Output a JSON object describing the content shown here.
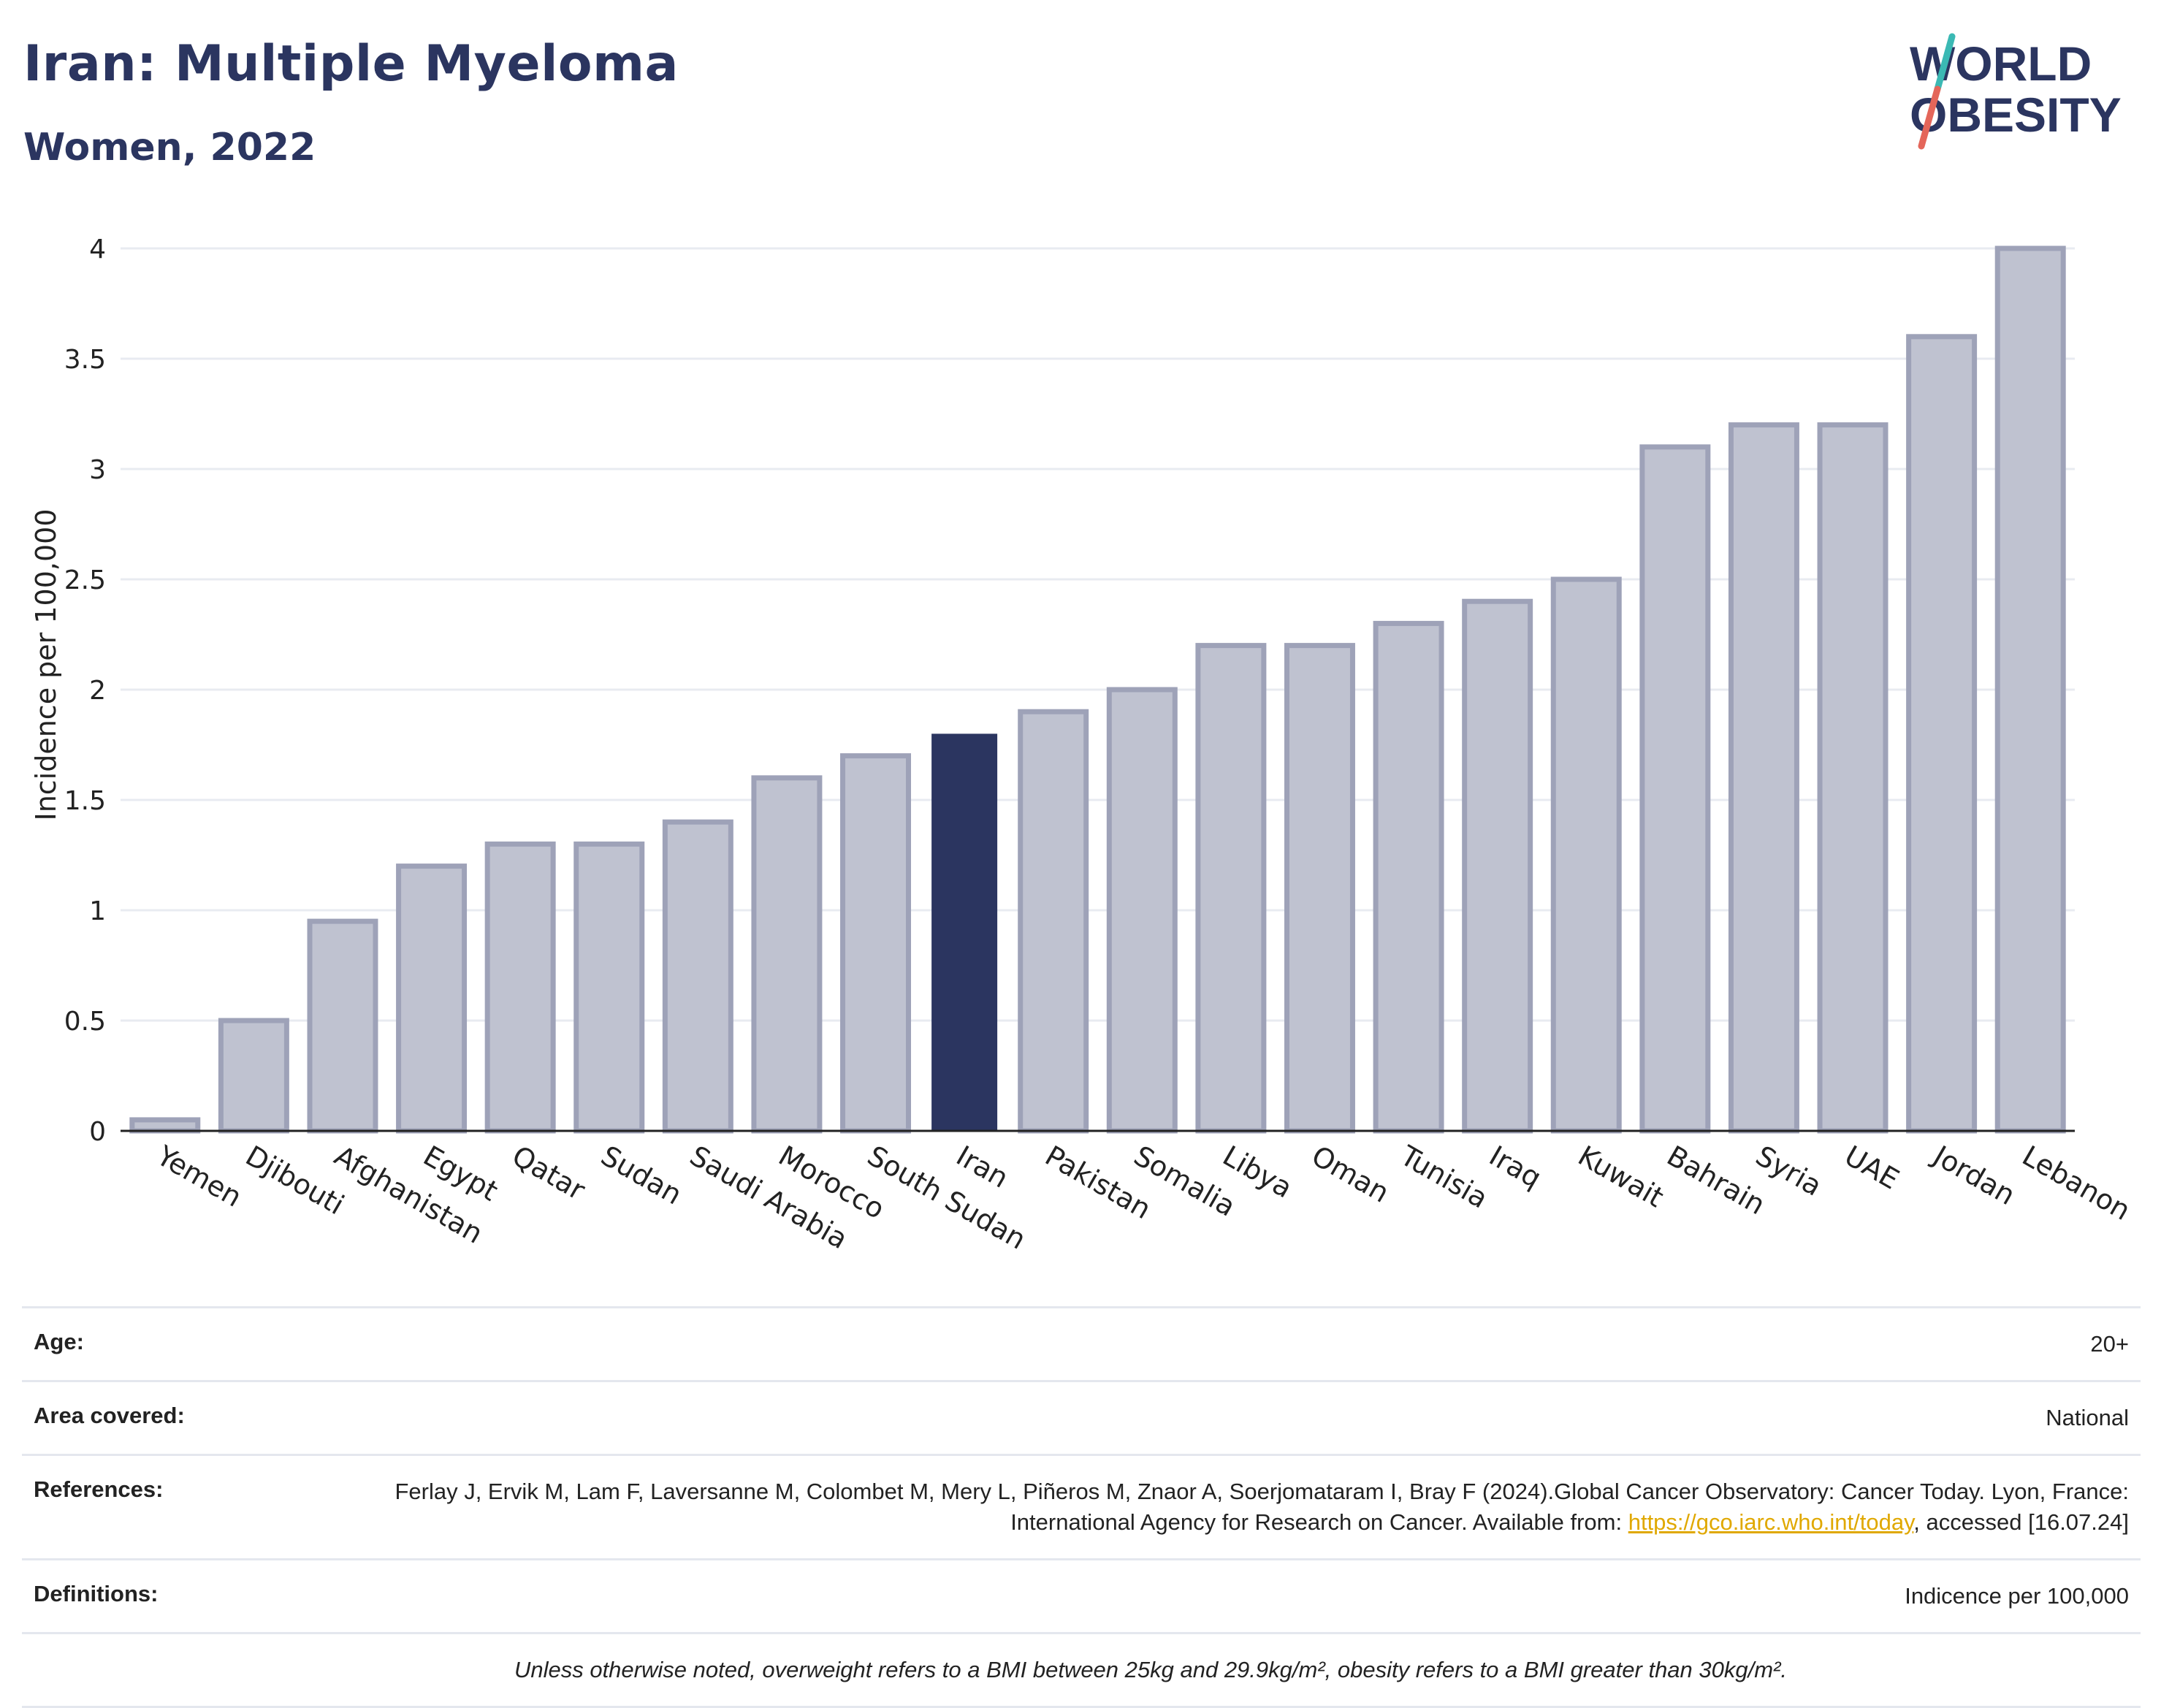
{
  "header": {
    "title": "Iran: Multiple Myeloma",
    "subtitle": "Women, 2022",
    "logo_line1": "WORLD",
    "logo_line2": "OBESITY"
  },
  "colors": {
    "highlight": "#2b3560",
    "bar_fill": "#bfc2d0",
    "bar_stroke": "#9ea2b8",
    "grid": "#e8ebf1",
    "logo_text": "#2b3560",
    "logo_teal": "#3bb9b4",
    "logo_red": "#e4665a"
  },
  "chart_data": {
    "type": "bar",
    "categories": [
      "Yemen",
      "Djibouti",
      "Afghanistan",
      "Egypt",
      "Qatar",
      "Sudan",
      "Saudi Arabia",
      "Morocco",
      "South Sudan",
      "Iran",
      "Pakistan",
      "Somalia",
      "Libya",
      "Oman",
      "Tunisia",
      "Iraq",
      "Kuwait",
      "Bahrain",
      "Syria",
      "UAE",
      "Jordan",
      "Lebanon"
    ],
    "values": [
      0.05,
      0.5,
      0.95,
      1.2,
      1.3,
      1.3,
      1.4,
      1.6,
      1.7,
      1.8,
      1.9,
      2.0,
      2.2,
      2.2,
      2.3,
      2.4,
      2.5,
      3.1,
      3.2,
      3.2,
      3.6,
      4.0
    ],
    "highlight": "Iran",
    "ylabel": "Incidence per 100,000",
    "xlabel": "",
    "ylim": [
      0,
      4
    ],
    "yticks": [
      "0",
      "0.5",
      "1",
      "1.5",
      "2",
      "2.5",
      "3",
      "3.5",
      "4"
    ],
    "grid": true
  },
  "meta": {
    "age_label": "Age:",
    "age_value": "20+",
    "area_label": "Area covered:",
    "area_value": "National",
    "references_label": "References:",
    "references_text": "Ferlay J, Ervik M, Lam F, Laversanne M, Colombet M, Mery L, Piñeros M, Znaor A, Soerjomataram I, Bray F (2024).Global Cancer Observatory: Cancer Today. Lyon, France: International Agency for Research on Cancer. Available from: ",
    "references_link": "https://gco.iarc.who.int/today",
    "references_tail": ", accessed [16.07.24]",
    "definitions_label": "Definitions:",
    "definitions_value": "Indicence per 100,000",
    "note": "Unless otherwise noted, overweight refers to a BMI between 25kg and 29.9kg/m², obesity refers to a BMI greater than 30kg/m²."
  }
}
